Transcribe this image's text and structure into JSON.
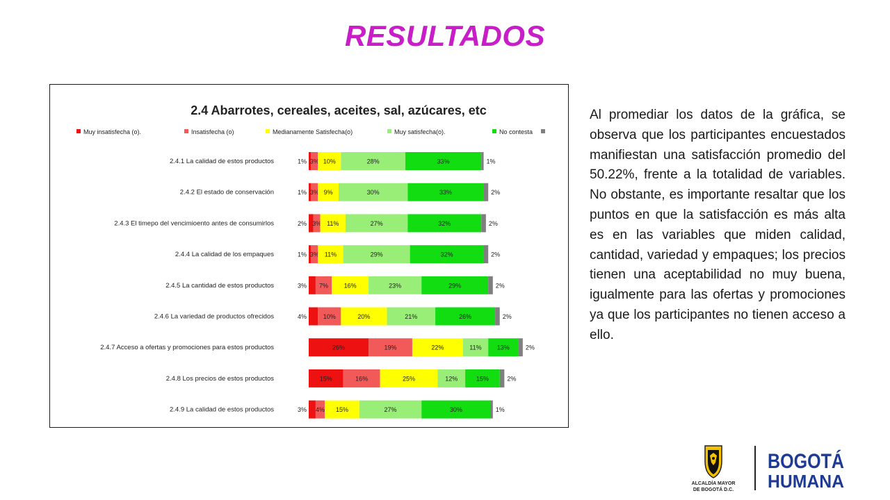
{
  "page": {
    "title": "RESULTADOS",
    "paragraph": "Al promediar los datos de la gráfica, se observa que los participantes encuestados manifiestan una satisfacción promedio del 50.22%, frente a la totalidad de variables. No obstante, es importante resaltar que los puntos en que la satisfacción es más alta es en las variables que miden calidad, cantidad, variedad y empaques; los precios tienen una aceptabilidad no muy buena, igualmente para las ofertas y promociones ya que los participantes no tienen acceso a ello."
  },
  "logo": {
    "seal_text_line1": "ALCALDÍA MAYOR",
    "seal_text_line2": "DE BOGOTÁ D.C.",
    "brand_line1": "BOGOTÁ",
    "brand_line2": "HUMANA",
    "brand_color": "#1f3a93"
  },
  "chart_data": {
    "type": "bar",
    "orientation": "horizontal",
    "stacked": true,
    "title": "2.4 Abarrotes, cereales, aceites, sal, azúcares, etc",
    "legend_position": "top",
    "categories": [
      "2.4.1 La calidad de estos productos",
      "2.4.2 El estado de conservación",
      "2.4.3 El timepo del vencimioento antes de consumirlos",
      "2.4.4 La calidad de los empaques",
      "2.4.5 La cantidad de estos productos",
      "2.4.6 La variedad de productos ofrecidos",
      "2.4.7 Acceso a ofertas y promociones para estos productos",
      "2.4.8 Los precios de estos productos",
      "2.4.9 La calidad de estos productos"
    ],
    "series": [
      {
        "name": "Muy insatisfecha (o).",
        "color": "#ee1111",
        "values": [
          1,
          1,
          2,
          1,
          3,
          4,
          26,
          15,
          3
        ]
      },
      {
        "name": "Insatisfecha (o)",
        "color": "#f25a5a",
        "values": [
          3,
          3,
          3,
          3,
          7,
          10,
          19,
          16,
          4
        ]
      },
      {
        "name": "Medianamente Satisfecha(o)",
        "color": "#ffff00",
        "values": [
          10,
          9,
          11,
          11,
          16,
          20,
          22,
          25,
          15
        ]
      },
      {
        "name": "Muy satisfecha(o).",
        "color": "#99ee77",
        "values": [
          28,
          30,
          27,
          29,
          23,
          21,
          11,
          12,
          27
        ]
      },
      {
        "name": "No contesta",
        "color": "#11dd11",
        "values": [
          33,
          33,
          32,
          32,
          29,
          26,
          13,
          15,
          30
        ]
      },
      {
        "name": "",
        "color": "#7f7f7f",
        "values": [
          1,
          2,
          2,
          2,
          2,
          2,
          2,
          2,
          1
        ]
      }
    ],
    "value_labels": [
      [
        "1%",
        "3%",
        "10%",
        "28%",
        "33%",
        "1%"
      ],
      [
        "1%",
        "3%",
        "9%",
        "30%",
        "33%",
        "2%"
      ],
      [
        "2%",
        "3%",
        "11%",
        "27%",
        "32%",
        "2%"
      ],
      [
        "1%",
        "3%",
        "11%",
        "29%",
        "32%",
        "2%"
      ],
      [
        "3%",
        "7%",
        "16%",
        "23%",
        "29%",
        "2%"
      ],
      [
        "4%",
        "10%",
        "20%",
        "21%",
        "26%",
        "2%"
      ],
      [
        "26%",
        "19%",
        "22%",
        "11%",
        "13%",
        "2%"
      ],
      [
        "15%",
        "16%",
        "25%",
        "12%",
        "15%",
        "2%"
      ],
      [
        "3%",
        "4%",
        "15%",
        "27%",
        "30%",
        "1%"
      ]
    ],
    "grid": false
  }
}
